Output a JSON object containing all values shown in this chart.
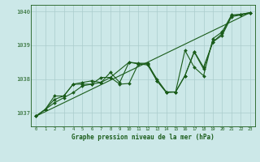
{
  "background_color": "#cce8e8",
  "line_color": "#1a5c1a",
  "grid_color": "#aacccc",
  "xlabel": "Graphe pression niveau de la mer (hPa)",
  "xlim": [
    -0.5,
    23.5
  ],
  "ylim": [
    1036.6,
    1040.2
  ],
  "yticks": [
    1037,
    1038,
    1039,
    1040
  ],
  "xticks": [
    0,
    1,
    2,
    3,
    4,
    5,
    6,
    7,
    8,
    9,
    10,
    11,
    12,
    13,
    14,
    15,
    16,
    17,
    18,
    19,
    20,
    21,
    22,
    23
  ],
  "series1_x": [
    0,
    1,
    2,
    3,
    4,
    5,
    6,
    7,
    8,
    9,
    10,
    11,
    12,
    13,
    14,
    15,
    16,
    17,
    18,
    19,
    20,
    21,
    22,
    23
  ],
  "series1_y": [
    1036.9,
    1037.1,
    1037.3,
    1037.45,
    1037.6,
    1037.8,
    1037.85,
    1037.9,
    1038.05,
    1037.85,
    1037.87,
    1038.45,
    1038.42,
    1037.95,
    1037.6,
    1037.62,
    1038.1,
    1038.8,
    1038.3,
    1039.1,
    1039.3,
    1039.85,
    1039.9,
    1039.95
  ],
  "series2_x": [
    0,
    1,
    2,
    3,
    4,
    5,
    6,
    7,
    8,
    9,
    10,
    11,
    12,
    13,
    14,
    15,
    16,
    17,
    18,
    19,
    20,
    21,
    22,
    23
  ],
  "series2_y": [
    1036.9,
    1037.1,
    1037.4,
    1037.5,
    1037.85,
    1037.9,
    1037.95,
    1037.9,
    1038.2,
    1037.9,
    1038.5,
    1038.45,
    1038.45,
    1038.0,
    1037.62,
    1037.62,
    1038.85,
    1038.35,
    1038.1,
    1039.2,
    1039.4,
    1039.9,
    1039.92,
    1039.97
  ],
  "series3_x": [
    0,
    1,
    2,
    3,
    4,
    5,
    6,
    7,
    8,
    10,
    11,
    12,
    13,
    14,
    15,
    16,
    17,
    18,
    19,
    20,
    21,
    22,
    23
  ],
  "series3_y": [
    1036.9,
    1037.1,
    1037.5,
    1037.5,
    1037.85,
    1037.85,
    1037.85,
    1038.05,
    1038.05,
    1038.5,
    1038.47,
    1038.47,
    1037.95,
    1037.62,
    1037.62,
    1038.1,
    1038.82,
    1038.35,
    1039.1,
    1039.35,
    1039.88,
    1039.92,
    1039.97
  ],
  "series4_x": [
    0,
    23
  ],
  "series4_y": [
    1036.9,
    1039.97
  ],
  "markersize": 2.0,
  "linewidth": 0.8
}
